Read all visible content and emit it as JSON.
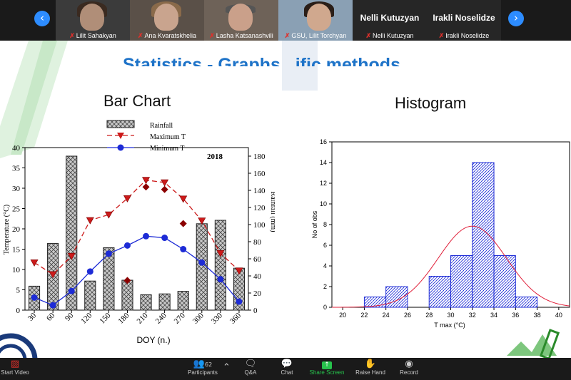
{
  "participants_strip": {
    "prev_icon": "chevron-left-icon",
    "next_icon": "chevron-right-icon",
    "tiles": [
      {
        "name": "Lilit Sahakyan"
      },
      {
        "name": "Ana Kvaratskhelia"
      },
      {
        "name": "Lasha Katsanashvili"
      },
      {
        "name": "GSU, Lilit Torchyan"
      },
      {
        "name": "Nelli Kutuzyan"
      },
      {
        "name": "Irakli Noselidze"
      }
    ]
  },
  "slide": {
    "heading": "Statistics - Graphs...ific methods",
    "bar_chart_title": "Bar Chart",
    "histogram_title": "Histogram"
  },
  "chart_data": [
    {
      "type": "bar",
      "title": "Bar Chart",
      "annotation": "2018",
      "xlabel": "DOY (n.)",
      "ylabel": "Temperature (°C)",
      "ylabel_right": "Rainfall (mm)",
      "ylim": [
        0,
        40
      ],
      "ylim_right": [
        0,
        190
      ],
      "legend_position": "top",
      "categories": [
        "30",
        "60",
        "90",
        "120",
        "150",
        "180",
        "210",
        "240",
        "270",
        "300",
        "330",
        "360"
      ],
      "series": [
        {
          "name": "Rainfall",
          "kind": "bar",
          "axis": "right",
          "values": [
            28,
            78,
            180,
            34,
            73,
            35,
            18,
            19,
            22,
            101,
            105,
            49
          ]
        },
        {
          "name": "Maximum T",
          "kind": "line",
          "values": [
            11.7,
            8.8,
            13.3,
            22.1,
            23.5,
            27.5,
            32.0,
            31.4,
            27.4,
            22.0,
            14.0,
            9.7
          ]
        },
        {
          "name": "Minimum T",
          "kind": "line",
          "values": [
            3.1,
            1.2,
            4.7,
            9.5,
            13.9,
            15.9,
            18.2,
            17.8,
            15.0,
            11.7,
            7.6,
            2.1
          ]
        }
      ],
      "extra_points": [
        {
          "x": "180",
          "y": 7.3
        },
        {
          "x": "210",
          "y": 30.3
        },
        {
          "x": "240",
          "y": 29.7
        },
        {
          "x": "270",
          "y": 21.3
        }
      ]
    },
    {
      "type": "bar",
      "title": "Histogram",
      "xlabel": "T max (°C)",
      "ylabel": "No of obs",
      "ylim": [
        0,
        16
      ],
      "xlim": [
        19,
        41
      ],
      "x_ticks": [
        20,
        22,
        24,
        26,
        28,
        30,
        32,
        34,
        36,
        38,
        40
      ],
      "y_ticks": [
        0,
        2,
        4,
        6,
        8,
        10,
        12,
        14,
        16
      ],
      "bins": [
        {
          "from": 22,
          "to": 24,
          "count": 1
        },
        {
          "from": 24,
          "to": 26,
          "count": 2
        },
        {
          "from": 28,
          "to": 30,
          "count": 3
        },
        {
          "from": 30,
          "to": 32,
          "count": 5
        },
        {
          "from": 32,
          "to": 34,
          "count": 14
        },
        {
          "from": 34,
          "to": 36,
          "count": 5
        },
        {
          "from": 36,
          "to": 38,
          "count": 1
        }
      ],
      "normal_curve": {
        "mean": 32,
        "sd": 3.15,
        "n": 31,
        "bin_width": 2
      }
    }
  ],
  "toolbar": {
    "items": [
      {
        "id": "start-video",
        "label": "Start Video",
        "icon": "video-off-icon"
      },
      {
        "id": "participants",
        "label": "Participants",
        "icon": "participants-icon",
        "count": "62"
      },
      {
        "id": "qa",
        "label": "Q&A",
        "icon": "qa-icon"
      },
      {
        "id": "chat",
        "label": "Chat",
        "icon": "chat-icon"
      },
      {
        "id": "share-screen",
        "label": "Share Screen",
        "icon": "share-screen-icon",
        "color": "#27c24c"
      },
      {
        "id": "raise-hand",
        "label": "Raise Hand",
        "icon": "raise-hand-icon"
      },
      {
        "id": "record",
        "label": "Record",
        "icon": "record-icon"
      }
    ]
  },
  "colors": {
    "accent": "#2d8cff",
    "max_t": "#cc1a1a",
    "min_t": "#1d2bd6",
    "histogram_bar": "#1d2bd6",
    "normal_curve": "#e0203a"
  }
}
